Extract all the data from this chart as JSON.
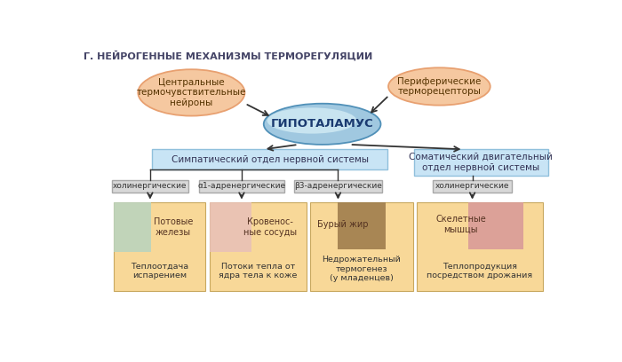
{
  "title": "Г. НЕЙРОГЕННЫЕ МЕХАНИЗМЫ ТЕРМОРЕГУЛЯЦИИ",
  "title_color": "#444466",
  "bg_color": "#ffffff",
  "ellipse_left_label": "Центральные\nтермочувствительные\nнейроны",
  "ellipse_right_label": "Периферические\nтерморецепторы",
  "ellipse_fill": "#f5c8a0",
  "ellipse_edge": "#e8a070",
  "hypothalamus_label": "ГИПОТАЛАМУС",
  "hyp_fill": "#90c8e0",
  "hyp_edge": "#5090b8",
  "box_sympath_label": "Симпатический отдел нервной системы",
  "box_somat_label": "Соматический двигательный\nотдел нервной системы",
  "box_fill": "#c8e4f5",
  "box_edge": "#90c0dc",
  "subbox_labels": [
    "холинергические",
    "α1-адренергические",
    "β3-адренергические",
    "холинергические"
  ],
  "subbox_fill": "#d8d8d8",
  "subbox_edge": "#a8a8a8",
  "outcome_box_fill": "#f8d898",
  "outcome_box_edge": "#c8a860",
  "organ_labels": [
    "Потовые\nжелезы",
    "Кровенос-\nные сосуды",
    "Бурый жир",
    "Скелетные\nмышцы"
  ],
  "result_labels": [
    "Теплоотдача\nиспарением",
    "Потоки тепла от\nядра тела к коже",
    "Недрожательный\nтермогенез\n(у младенцев)",
    "Теплопродукция\nпосредством дрожания"
  ],
  "arrow_color": "#333333",
  "text_dark": "#333355",
  "text_organ": "#553322",
  "img_colors": [
    "#c8ddc8",
    "#e8c8c0",
    "#9a7050",
    "#d8a0a0"
  ]
}
